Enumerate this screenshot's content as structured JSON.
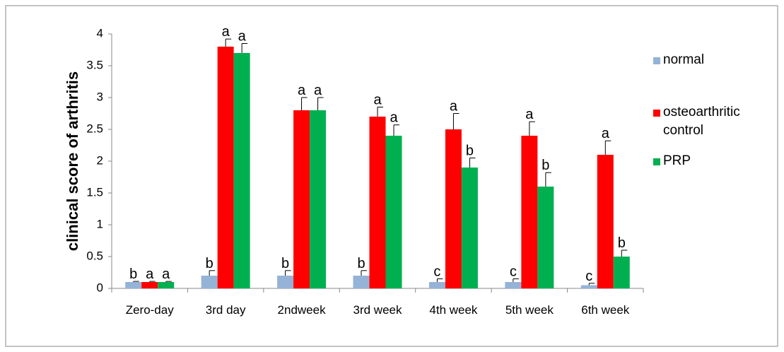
{
  "chart_data": {
    "type": "bar",
    "ylabel": "clinical score of arthritis",
    "categories": [
      "Zero-day",
      "3rd day",
      "2ndweek",
      "3rd week",
      "4th week",
      "5th week",
      "6th week"
    ],
    "series": [
      {
        "name": "normal",
        "color": "#95b3d7",
        "values": [
          0.1,
          0.2,
          0.2,
          0.2,
          0.1,
          0.1,
          0.05
        ],
        "errors": [
          0.01,
          0.08,
          0.08,
          0.08,
          0.05,
          0.05,
          0.03
        ],
        "letters": [
          "b",
          "b",
          "b",
          "b",
          "c",
          "c",
          "c"
        ]
      },
      {
        "name": "osteoarthritic control",
        "color": "#ff0000",
        "values": [
          0.1,
          3.8,
          2.8,
          2.7,
          2.5,
          2.4,
          2.1
        ],
        "errors": [
          0.01,
          0.12,
          0.2,
          0.15,
          0.25,
          0.22,
          0.22
        ],
        "letters": [
          "a",
          "a",
          "a",
          "a",
          "a",
          "a",
          "a"
        ]
      },
      {
        "name": "PRP",
        "color": "#00b050",
        "values": [
          0.1,
          3.7,
          2.8,
          2.4,
          1.9,
          1.6,
          0.5
        ],
        "errors": [
          0.01,
          0.15,
          0.2,
          0.17,
          0.15,
          0.22,
          0.1
        ],
        "letters": [
          "a",
          "a",
          "a",
          "a",
          "b",
          "b",
          "b"
        ]
      }
    ],
    "ylim": [
      0,
      4
    ],
    "yticks": [
      0,
      0.5,
      1,
      1.5,
      2,
      2.5,
      3,
      3.5,
      4
    ],
    "grid": false,
    "legend": "right"
  }
}
